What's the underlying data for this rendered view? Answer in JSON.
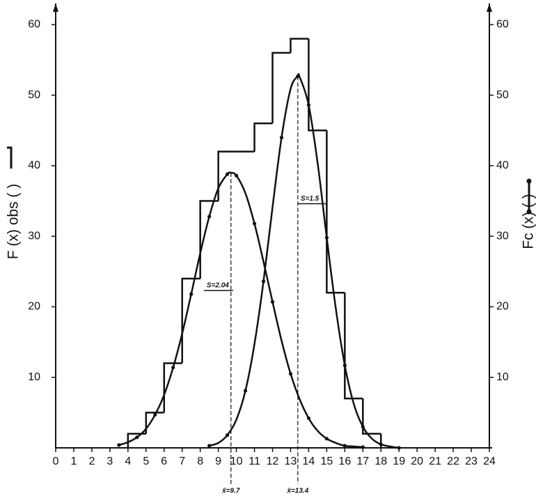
{
  "chart_data": {
    "type": "histogram-fit",
    "x_label": null,
    "y_label": "F (x) obs (       )",
    "y2_label": "Fc (x) (       )",
    "xlim": [
      0,
      24
    ],
    "ylim": [
      0,
      63
    ],
    "y2lim": [
      0,
      63
    ],
    "xticks": [
      0,
      1,
      2,
      3,
      4,
      5,
      6,
      7,
      8,
      9,
      10,
      11,
      12,
      13,
      14,
      15,
      16,
      17,
      18,
      19,
      20,
      21,
      22,
      23,
      24
    ],
    "yticks": [
      10,
      20,
      30,
      40,
      50,
      60
    ],
    "y2ticks": [
      10,
      20,
      30,
      40,
      50,
      60
    ],
    "histogram": {
      "bins": [
        4,
        5,
        6,
        7,
        8,
        9,
        10,
        11,
        12,
        13,
        14,
        15,
        16,
        17,
        18
      ],
      "counts": [
        2,
        5,
        12,
        24,
        35,
        42,
        42,
        46,
        56,
        58,
        45,
        22,
        7,
        2
      ],
      "color": "#111111"
    },
    "series": [
      {
        "color": "#111111",
        "x": [
          3.5,
          4,
          4.5,
          5,
          5.5,
          6,
          6.5,
          7,
          7.5,
          8,
          8.5,
          9,
          9.5,
          9.7,
          10,
          10.5,
          11,
          11.5,
          12,
          12.5,
          13,
          13.5,
          14,
          14.5,
          15,
          15.5,
          16,
          16.5,
          17
        ],
        "values": [
          0.4,
          0.8,
          1.5,
          2.7,
          4.7,
          7.5,
          11.4,
          16.2,
          21.8,
          27.6,
          32.8,
          36.8,
          38.8,
          39,
          38.6,
          36.1,
          31.8,
          26.4,
          20.7,
          15.2,
          10.5,
          6.9,
          4.2,
          2.4,
          1.3,
          0.7,
          0.3,
          0.2,
          0.1
        ]
      },
      {
        "color": "#111111",
        "x": [
          8.5,
          9,
          9.5,
          10,
          10.5,
          11,
          11.5,
          12,
          12.5,
          13,
          13.4,
          13.5,
          14,
          14.5,
          15,
          15.5,
          16,
          16.5,
          17,
          17.5,
          18,
          18.5,
          19
        ],
        "values": [
          0.3,
          0.7,
          1.8,
          4.0,
          8.1,
          14.7,
          23.6,
          34.1,
          44.0,
          50.9,
          52.7,
          52.6,
          48.6,
          40.3,
          29.8,
          19.8,
          11.7,
          6.2,
          3.0,
          1.3,
          0.5,
          0.2,
          0.0
        ]
      }
    ],
    "means": [
      {
        "x": 9.7,
        "y": 39,
        "label": "x̄=9.7"
      },
      {
        "x": 13.4,
        "y": 52.7,
        "label": "x̄=13.4"
      }
    ],
    "spreads": [
      {
        "x": 8.2,
        "y": 23,
        "label": "S=2.04"
      },
      {
        "x": 13.4,
        "y": 35.3,
        "label": "S=1.5"
      }
    ]
  }
}
